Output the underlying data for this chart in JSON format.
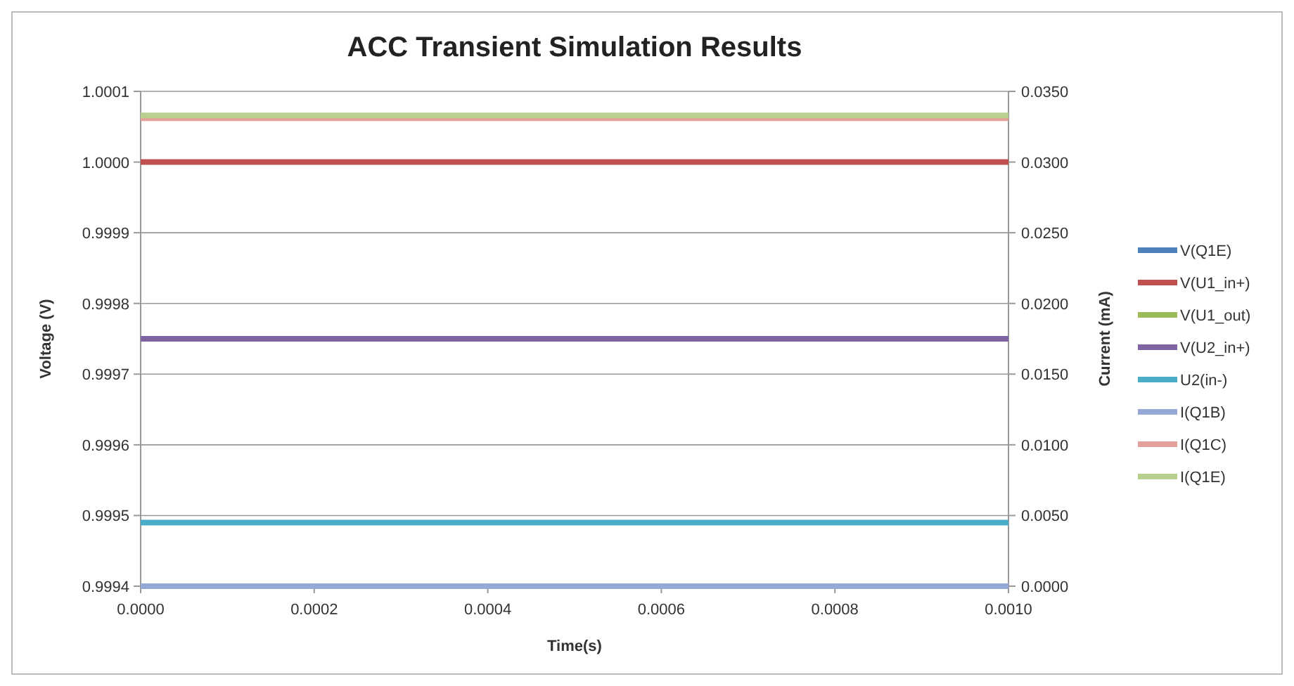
{
  "chart_data": {
    "type": "line",
    "title": "ACC Transient Simulation Results",
    "xlabel": "Time(s)",
    "ylabel": "Voltage (V)",
    "y2label": "Current (mA)",
    "x": [
      0,
      0.001
    ],
    "xlim": [
      0,
      0.001
    ],
    "xticks": [
      {
        "value": 0,
        "label": "0.0000"
      },
      {
        "value": 0.0002,
        "label": "0.0002"
      },
      {
        "value": 0.0004,
        "label": "0.0004"
      },
      {
        "value": 0.0006,
        "label": "0.0006"
      },
      {
        "value": 0.0008,
        "label": "0.0008"
      },
      {
        "value": 0.001,
        "label": "0.0010"
      }
    ],
    "ylim": [
      0.9994,
      1.0001
    ],
    "yticks": [
      {
        "value": 0.9994,
        "label": "0.9994"
      },
      {
        "value": 0.9995,
        "label": "0.9995"
      },
      {
        "value": 0.9996,
        "label": "0.9996"
      },
      {
        "value": 0.9997,
        "label": "0.9997"
      },
      {
        "value": 0.9998,
        "label": "0.9998"
      },
      {
        "value": 0.9999,
        "label": "0.9999"
      },
      {
        "value": 1.0,
        "label": "1.0000"
      },
      {
        "value": 1.0001,
        "label": "1.0001"
      }
    ],
    "y2lim": [
      0,
      0.035
    ],
    "y2ticks": [
      {
        "value": 0,
        "label": "0.0000"
      },
      {
        "value": 0.005,
        "label": "0.0050"
      },
      {
        "value": 0.01,
        "label": "0.0100"
      },
      {
        "value": 0.015,
        "label": "0.0150"
      },
      {
        "value": 0.02,
        "label": "0.0200"
      },
      {
        "value": 0.025,
        "label": "0.0250"
      },
      {
        "value": 0.03,
        "label": "0.0300"
      },
      {
        "value": 0.035,
        "label": "0.0350"
      }
    ],
    "grid": "y",
    "legend": "right",
    "marker": "none",
    "line_style": "solid",
    "series": [
      {
        "name": "V(Q1E)",
        "color": "#4f81bd",
        "values": [
          null,
          null
        ]
      },
      {
        "name": "V(U1_in+)",
        "color": "#c0504d",
        "values": [
          1.0,
          1.0
        ]
      },
      {
        "name": "V(U1_out)",
        "color": "#9bbb59",
        "values": [
          null,
          null
        ]
      },
      {
        "name": "V(U2_in+)",
        "color": "#8064a2",
        "values": [
          0.99975,
          0.99975
        ]
      },
      {
        "name": "U2(in-)",
        "color": "#4bacc6",
        "values": [
          0.99949,
          0.99949
        ]
      },
      {
        "name": "I(Q1B)",
        "color": "#95a9d4",
        "values": [
          0,
          0
        ],
        "axis": "y2"
      },
      {
        "name": "I(Q1C)",
        "color": "#e6a09b",
        "values": [
          0.0331,
          0.0331
        ],
        "axis": "y2"
      },
      {
        "name": "I(Q1E)",
        "color": "#b8d08e",
        "values": [
          0.0333,
          0.0333
        ],
        "axis": "y2"
      }
    ]
  }
}
